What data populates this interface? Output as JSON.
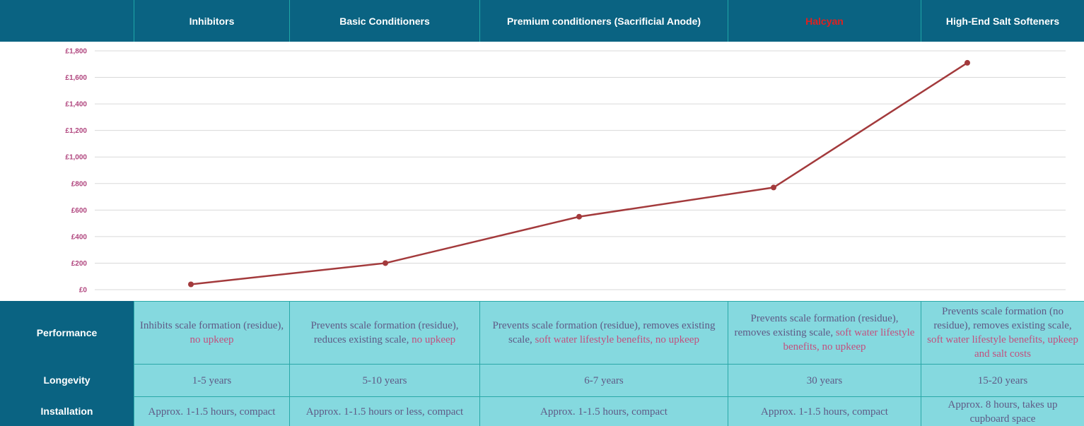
{
  "header": {
    "columns": [
      {
        "label": "Inhibitors",
        "color": "#ffffff"
      },
      {
        "label": "Basic Conditioners",
        "color": "#ffffff"
      },
      {
        "label": "Premium conditioners (Sacrificial Anode)",
        "color": "#ffffff"
      },
      {
        "label": "Halcyan",
        "color": "#e0201f"
      },
      {
        "label": "High-End Salt Softeners",
        "color": "#ffffff"
      }
    ]
  },
  "chart_data": {
    "type": "line",
    "categories": [
      "Inhibitors",
      "Basic Conditioners",
      "Premium conditioners (Sacrificial Anode)",
      "Halcyan",
      "High-End Salt Softeners"
    ],
    "series": [
      {
        "values": [
          40,
          200,
          550,
          770,
          1710
        ],
        "color": "#a33a3c"
      }
    ],
    "ylim": [
      0,
      1800
    ],
    "yticks": [
      "£0",
      "£200",
      "£400",
      "£600",
      "£800",
      "£1,000",
      "£1,200",
      "£1,400",
      "£1,600",
      "£1,800"
    ],
    "grid": true
  },
  "table": {
    "rows": [
      {
        "header": "Performance",
        "cells": [
          {
            "plain": "Inhibits scale formation (residue), ",
            "highlight": "no upkeep"
          },
          {
            "plain": "Prevents scale formation (residue), reduces existing scale, ",
            "highlight": "no upkeep"
          },
          {
            "plain": "Prevents scale formation (residue), removes existing scale, ",
            "highlight": "soft water lifestyle benefits, no upkeep"
          },
          {
            "plain": "Prevents scale formation (residue), removes existing scale, ",
            "highlight": "soft water lifestyle benefits, no upkeep"
          },
          {
            "plain": "Prevents scale formation (no residue), removes existing scale, ",
            "highlight": "soft water lifestyle benefits, upkeep and salt costs"
          }
        ]
      },
      {
        "header": "Longevity",
        "cells": [
          {
            "plain": "1-5 years",
            "highlight": ""
          },
          {
            "plain": "5-10 years",
            "highlight": ""
          },
          {
            "plain": "6-7 years",
            "highlight": ""
          },
          {
            "plain": "30 years",
            "highlight": ""
          },
          {
            "plain": "15-20 years",
            "highlight": ""
          }
        ]
      },
      {
        "header": "Installation",
        "cells": [
          {
            "plain": "Approx. 1-1.5 hours, compact",
            "highlight": ""
          },
          {
            "plain": "Approx. 1-1.5 hours or less, compact",
            "highlight": ""
          },
          {
            "plain": "Approx. 1-1.5 hours, compact",
            "highlight": ""
          },
          {
            "plain": "Approx. 1-1.5 hours, compact",
            "highlight": ""
          },
          {
            "plain": "Approx. 8 hours, takes up cupboard space",
            "highlight": ""
          }
        ]
      }
    ]
  }
}
